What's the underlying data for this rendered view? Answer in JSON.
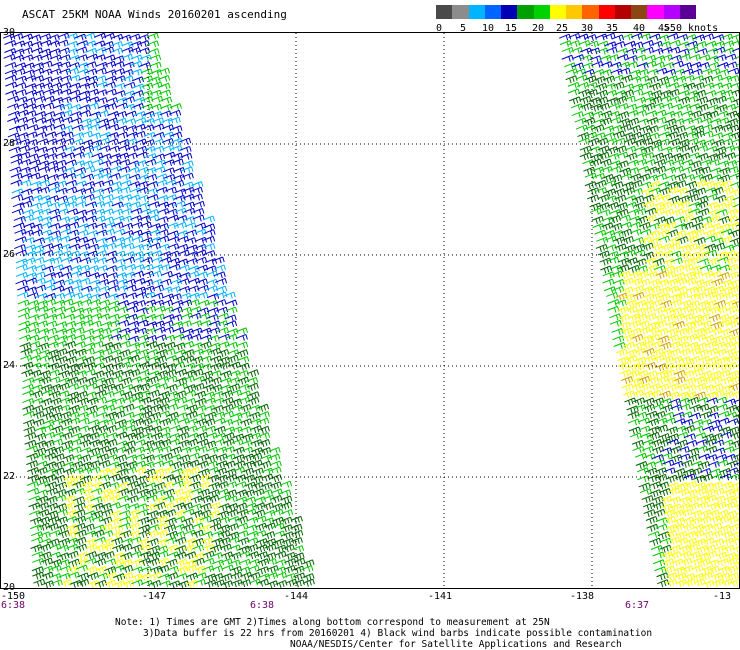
{
  "title": "ASCAT 25KM NOAA Winds 20160201  ascending",
  "legend": {
    "colors": [
      "#4a4a4a",
      "#8c8c8c",
      "#00b4ff",
      "#0064ff",
      "#0000b4",
      "#00a000",
      "#00d200",
      "#ffff00",
      "#ffc800",
      "#ff6400",
      "#ff0000",
      "#b40000",
      "#8c4614",
      "#ff00ff",
      "#b400ff",
      "#5a0096"
    ],
    "tick_labels": [
      "0",
      "5",
      "10",
      "15",
      "20",
      "25",
      "30",
      "35",
      "40",
      "45",
      ">50 knots"
    ]
  },
  "y_axis_labels": [
    "30",
    "28",
    "26",
    "24",
    "22",
    "20"
  ],
  "x_axis_labels": [
    "-150",
    "-147",
    "-144",
    "-141",
    "-138",
    "-13"
  ],
  "time_labels": [
    "6:38",
    "6:38",
    "6:37"
  ],
  "note_lines": [
    "Note: 1) Times are GMT 2)Times along bottom correspond to measurement at 25N",
    "3)Data buffer is 22 hrs from 20160201 4) Black wind barbs indicate possible contamination",
    "NOAA/NESDIS/Center for Satellite Applications and Research"
  ],
  "map": {
    "lon_range": [
      -150,
      -135
    ],
    "lat_range": [
      20,
      30
    ],
    "swaths": [
      {
        "name": "west-swath",
        "bounds_top": [
          -150,
          -146
        ],
        "bounds_bottom": [
          -149.5,
          -144.5
        ]
      },
      {
        "name": "east-swath",
        "bounds_top": [
          -138,
          -135
        ],
        "bounds_bottom": [
          -136,
          -135
        ]
      }
    ],
    "wind_color_key": {
      "light_blue": "#00b4ff",
      "blue": "#0000c8",
      "green": "#00c800",
      "dark_green": "#006400",
      "yellow": "#ffff00",
      "orange": "#d2a000"
    }
  }
}
